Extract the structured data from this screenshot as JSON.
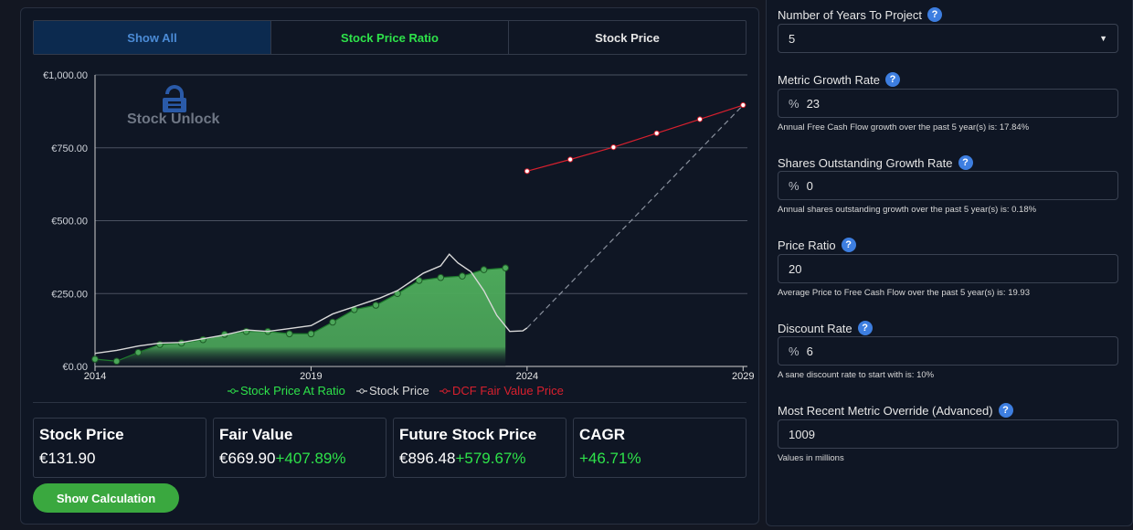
{
  "tabs": [
    "Show All",
    "Stock Price Ratio",
    "Stock Price"
  ],
  "brand": "Stock Unlock",
  "chart_data": {
    "type": "line",
    "x_range": [
      2014,
      2029.1
    ],
    "ylim": [
      0,
      1000
    ],
    "y_ticks": [
      {
        "v": 0,
        "label": "€0.00"
      },
      {
        "v": 250,
        "label": "€250.00"
      },
      {
        "v": 500,
        "label": "€500.00"
      },
      {
        "v": 750,
        "label": "€750.00"
      },
      {
        "v": 1000,
        "label": "€1,000.00"
      }
    ],
    "x_ticks": [
      {
        "v": 2014,
        "label": "2014"
      },
      {
        "v": 2019,
        "label": "2019"
      },
      {
        "v": 2024,
        "label": "2024"
      },
      {
        "v": 2029,
        "label": "2029"
      }
    ],
    "legend": [
      "Stock Price At Ratio",
      "Stock Price",
      "DCF Fair Value Price"
    ],
    "colors": {
      "ratio": "#2ee24a",
      "price": "#d9d9d9",
      "dcf": "#d8202e",
      "fill": "#4ca85a"
    },
    "series": [
      {
        "name": "Stock Price At Ratio",
        "x": [
          2014,
          2014.5,
          2015,
          2015.5,
          2016,
          2016.5,
          2017,
          2017.5,
          2018,
          2018.5,
          2019,
          2019.5,
          2020,
          2020.5,
          2021,
          2021.5,
          2022,
          2022.5,
          2023,
          2023.5
        ],
        "y": [
          25,
          18,
          48,
          75,
          80,
          92,
          110,
          120,
          120,
          112,
          112,
          152,
          195,
          210,
          250,
          295,
          305,
          310,
          332,
          338
        ]
      },
      {
        "name": "Stock Price",
        "x": [
          2014,
          2014.5,
          2015,
          2015.5,
          2016,
          2016.5,
          2017,
          2017.5,
          2018,
          2018.5,
          2019,
          2019.5,
          2020,
          2020.3,
          2020.6,
          2021,
          2021.3,
          2021.6,
          2022,
          2022.2,
          2022.4,
          2022.7,
          2023,
          2023.3,
          2023.6,
          2023.9,
          2024
        ],
        "y": [
          45,
          55,
          70,
          80,
          82,
          95,
          108,
          125,
          120,
          130,
          140,
          180,
          205,
          220,
          235,
          260,
          290,
          320,
          345,
          385,
          355,
          325,
          260,
          175,
          120,
          122,
          132
        ]
      },
      {
        "name": "DCF Fair Value Price",
        "x": [
          2024,
          2025,
          2026,
          2027,
          2028,
          2029
        ],
        "y": [
          669.9,
          710,
          752,
          800,
          848,
          896.5
        ]
      }
    ],
    "projection": {
      "x": [
        2024,
        2029
      ],
      "y": [
        131.9,
        896.48
      ]
    }
  },
  "stats": [
    {
      "label": "Stock Price",
      "value": "€131.90",
      "pct": ""
    },
    {
      "label": "Fair Value",
      "value": "€669.90",
      "pct": "+407.89%"
    },
    {
      "label": "Future Stock Price",
      "value": "€896.48",
      "pct": "+579.67%"
    },
    {
      "label": "CAGR",
      "value": "",
      "pct": "+46.71%"
    }
  ],
  "show_calc": "Show Calculation",
  "form": {
    "years": {
      "label": "Number of Years To Project",
      "value": "5"
    },
    "growth": {
      "label": "Metric Growth Rate",
      "prefix": "%",
      "value": "23",
      "hint": "Annual Free Cash Flow growth over the past 5 year(s) is: 17.84%"
    },
    "shares": {
      "label": "Shares Outstanding Growth Rate",
      "prefix": "%",
      "value": "0",
      "hint": "Annual shares outstanding growth over the past 5 year(s) is: 0.18%"
    },
    "ratio": {
      "label": "Price Ratio",
      "value": "20",
      "hint": "Average Price to Free Cash Flow over the past 5 year(s) is: 19.93"
    },
    "discount": {
      "label": "Discount Rate",
      "prefix": "%",
      "value": "6",
      "hint": "A sane discount rate to start with is: 10%"
    },
    "override": {
      "label": "Most Recent Metric Override (Advanced)",
      "value": "1009",
      "hint": "Values in millions"
    }
  }
}
